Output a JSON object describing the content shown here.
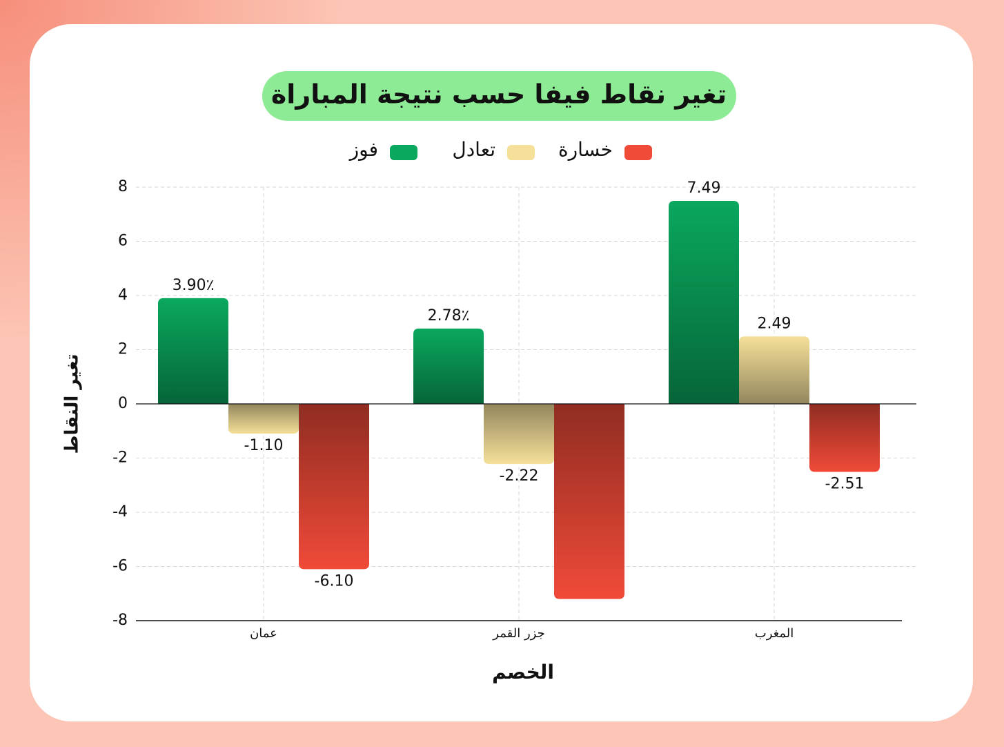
{
  "chart_data": {
    "type": "bar",
    "title": "تغير نقاط فيفا حسب نتيجة المباراة",
    "x_label": "الخصم",
    "y_label": "تغير النقاط",
    "categories": [
      "عمان",
      "جزر القمر",
      "المغرب"
    ],
    "series": [
      {
        "name": "فوز",
        "color": "#0aa85e",
        "values": [
          3.9,
          2.78,
          7.49
        ],
        "value_labels": [
          "3.90٪",
          "2.78٪",
          "7.49"
        ]
      },
      {
        "name": "تعادل",
        "color": "#f5e09a",
        "values": [
          -1.1,
          -2.22,
          2.49
        ],
        "value_labels": [
          "-1.10",
          "-2.22",
          "2.49"
        ]
      },
      {
        "name": "خسارة",
        "color": "#f04a38",
        "values": [
          -6.1,
          -7.2,
          -2.51
        ],
        "value_labels": [
          "-6.10",
          null,
          "-2.51"
        ]
      }
    ],
    "ylim": [
      -8,
      8
    ],
    "yticks": [
      8,
      6,
      4,
      2,
      0,
      -2,
      -4,
      -6,
      -8
    ],
    "grid": true
  }
}
